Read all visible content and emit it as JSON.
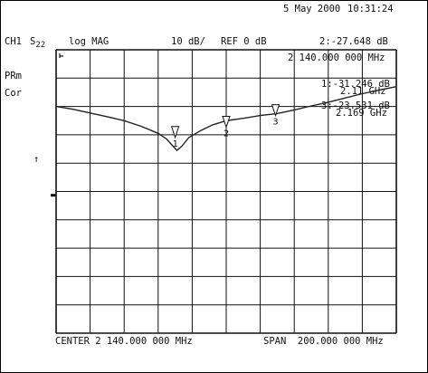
{
  "header": {
    "date": "5 May 2000",
    "time": "10:31:24",
    "channel": "CH1",
    "param_main": "S",
    "param_sub": "22",
    "format": "log MAG",
    "scale": "10 dB/",
    "ref": "REF 0 dB",
    "active_marker_value": "2:-27.648 dB",
    "active_marker_freq": "2 140.000 000 MHz"
  },
  "left_annotations": {
    "prm": "PRm",
    "cor": "Cor",
    "ref_arrow": "↑"
  },
  "marker_readouts": [
    {
      "line1": "1:-31.246 dB",
      "line2": "2.11 GHz"
    },
    {
      "line1": "3:-23.531 dB",
      "line2": "2.169 GHz"
    }
  ],
  "footer": {
    "center": "CENTER 2 140.000 000 MHz",
    "span": "SPAN  200.000 000 MHz"
  },
  "chart_data": {
    "type": "line",
    "title": "",
    "xlabel": "",
    "ylabel": "",
    "x_unit": "MHz",
    "x_center": 2140,
    "x_span": 200,
    "xlim": [
      2040,
      2240
    ],
    "ylim": [
      -100,
      0
    ],
    "ref_level_db": 0,
    "scale_db_per_div": 10,
    "grid": true,
    "x_divisions": 10,
    "y_divisions": 10,
    "series": [
      {
        "points": [
          [
            2040,
            -20.0
          ],
          [
            2050,
            -21.0
          ],
          [
            2060,
            -22.3
          ],
          [
            2070,
            -23.6
          ],
          [
            2080,
            -25.0
          ],
          [
            2090,
            -27.0
          ],
          [
            2100,
            -29.5
          ],
          [
            2105,
            -31.5
          ],
          [
            2108,
            -33.5
          ],
          [
            2111,
            -35.5
          ],
          [
            2114,
            -34.0
          ],
          [
            2118,
            -31.0
          ],
          [
            2125,
            -28.5
          ],
          [
            2132,
            -26.5
          ],
          [
            2140,
            -25.0
          ],
          [
            2150,
            -24.2
          ],
          [
            2160,
            -23.2
          ],
          [
            2170,
            -22.5
          ],
          [
            2180,
            -21.2
          ],
          [
            2190,
            -19.8
          ],
          [
            2200,
            -18.5
          ],
          [
            2210,
            -17.0
          ],
          [
            2220,
            -15.5
          ],
          [
            2230,
            -14.2
          ],
          [
            2240,
            -13.0
          ]
        ]
      }
    ],
    "markers": [
      {
        "label": "1",
        "x": 2110,
        "y": -31.246
      },
      {
        "label": "2",
        "x": 2140,
        "y": -27.648
      },
      {
        "label": "3",
        "x": 2169,
        "y": -23.531
      }
    ]
  }
}
